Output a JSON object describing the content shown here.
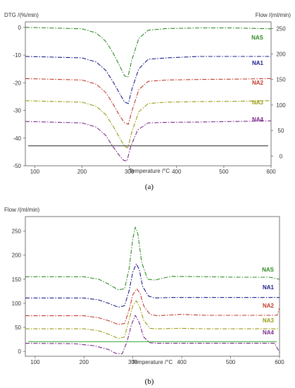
{
  "chart_data": [
    {
      "type": "line",
      "caption": "(a)",
      "xlabel": "Temperature /°C",
      "ylabel_left": "DTG /(%/min)",
      "ylabel_right": "Flow /(ml/min)",
      "xlim": [
        80,
        600
      ],
      "ylim_left": [
        -50,
        2
      ],
      "ylim_right": [
        -19,
        263
      ],
      "x_ticks": [
        "100",
        "200",
        "300",
        "400",
        "500",
        "600"
      ],
      "y_ticks_left": [
        "0",
        "-10",
        "-20",
        "-30",
        "-40",
        "-50"
      ],
      "y_ticks_right": [
        "250",
        "200",
        "150",
        "100",
        "50",
        "0"
      ],
      "reference_line_flow": 20,
      "series": [
        {
          "name": "NAS",
          "color": "#2e8b22",
          "style": "dashdot",
          "x": [
            80,
            200,
            230,
            250,
            265,
            280,
            290,
            297,
            305,
            320,
            340,
            380,
            450,
            520,
            600
          ],
          "y": [
            0,
            -0.5,
            -2,
            -5,
            -9,
            -14,
            -17.5,
            -18,
            -12,
            -4,
            -1,
            -0.4,
            -0.2,
            -0.2,
            -0.5
          ]
        },
        {
          "name": "NA1",
          "color": "#1c1c8c",
          "style": "dashdot",
          "x": [
            80,
            200,
            230,
            250,
            265,
            280,
            290,
            298,
            306,
            320,
            340,
            380,
            450,
            520,
            600
          ],
          "y": [
            -10.5,
            -11,
            -12.5,
            -15.5,
            -19.5,
            -24,
            -27,
            -27.5,
            -22,
            -15,
            -11.5,
            -11,
            -10.5,
            -10.5,
            -10.5
          ]
        },
        {
          "name": "NA2",
          "color": "#c0392b",
          "style": "dashdot",
          "x": [
            80,
            200,
            230,
            250,
            265,
            280,
            290,
            298,
            306,
            320,
            340,
            380,
            450,
            520,
            600
          ],
          "y": [
            -18.5,
            -19,
            -20.5,
            -23.5,
            -27.5,
            -32,
            -34.5,
            -35,
            -30,
            -22.5,
            -19.5,
            -19,
            -18.8,
            -18.7,
            -18.5
          ]
        },
        {
          "name": "NA3",
          "color": "#9a9a14",
          "style": "dashdot",
          "x": [
            80,
            200,
            230,
            250,
            265,
            280,
            290,
            297,
            305,
            320,
            340,
            380,
            450,
            520,
            600
          ],
          "y": [
            -26.5,
            -27,
            -28.5,
            -31.5,
            -35.5,
            -40,
            -43,
            -43.5,
            -38,
            -30.5,
            -27.5,
            -27,
            -26.8,
            -26.7,
            -26.5
          ]
        },
        {
          "name": "NA4",
          "color": "#7b2a8c",
          "style": "dashdot",
          "x": [
            80,
            200,
            230,
            250,
            265,
            280,
            288,
            295,
            303,
            318,
            340,
            380,
            450,
            520,
            600
          ],
          "y": [
            -34,
            -34.5,
            -36,
            -39,
            -43,
            -46.5,
            -48,
            -48.3,
            -43,
            -37,
            -34.5,
            -34.3,
            -34.2,
            -34,
            -33.8
          ]
        }
      ]
    },
    {
      "type": "line",
      "caption": "(b)",
      "xlabel": "Temperature /°C",
      "ylabel": "Flow /(ml/min)",
      "xlim": [
        80,
        600
      ],
      "ylim": [
        -10,
        280
      ],
      "x_ticks": [
        "100",
        "200",
        "300",
        "400",
        "500",
        "600"
      ],
      "y_ticks": [
        "250",
        "200",
        "150",
        "100",
        "50",
        "0"
      ],
      "reference_line_flow": 20,
      "series": [
        {
          "name": "NAS",
          "color": "#2e8b22",
          "style": "dashdot",
          "x": [
            80,
            200,
            230,
            250,
            270,
            283,
            292,
            300,
            305,
            310,
            318,
            330,
            345,
            360,
            380,
            450,
            520,
            580,
            600
          ],
          "y": [
            155,
            155,
            150,
            140,
            128,
            130,
            170,
            235,
            258,
            245,
            185,
            150,
            148,
            152,
            156,
            155,
            154,
            154,
            150
          ]
        },
        {
          "name": "NA1",
          "color": "#1c1c8c",
          "style": "dashdot",
          "x": [
            80,
            200,
            230,
            250,
            270,
            283,
            292,
            300,
            307,
            313,
            320,
            332,
            345,
            380,
            450,
            520,
            600
          ],
          "y": [
            111,
            111,
            107,
            100,
            92,
            95,
            125,
            165,
            182,
            170,
            135,
            115,
            111,
            112,
            112,
            112,
            112
          ]
        },
        {
          "name": "NA2",
          "color": "#c0392b",
          "style": "dashdot",
          "x": [
            80,
            200,
            230,
            250,
            270,
            283,
            292,
            300,
            308,
            315,
            322,
            335,
            350,
            400,
            450,
            520,
            595,
            600
          ],
          "y": [
            74,
            74,
            70,
            64,
            56,
            58,
            85,
            118,
            130,
            120,
            95,
            77,
            74,
            77,
            75,
            75,
            75,
            90
          ]
        },
        {
          "name": "NA3",
          "color": "#9a9a14",
          "style": "dashdot",
          "x": [
            80,
            200,
            230,
            250,
            270,
            283,
            292,
            300,
            307,
            314,
            322,
            335,
            350,
            400,
            450,
            520,
            600
          ],
          "y": [
            47,
            47,
            43,
            36,
            27,
            30,
            65,
            95,
            105,
            92,
            65,
            48,
            47,
            48,
            47,
            47,
            47
          ]
        },
        {
          "name": "NA4",
          "color": "#7b2a8c",
          "style": "dashdot",
          "x": [
            80,
            180,
            220,
            250,
            265,
            278,
            288,
            297,
            305,
            313,
            322,
            335,
            350,
            400,
            450,
            520,
            590,
            600
          ],
          "y": [
            17,
            16,
            12,
            4,
            -4,
            -5,
            20,
            55,
            75,
            60,
            30,
            18,
            17,
            17,
            17,
            17,
            17,
            -2
          ]
        }
      ]
    }
  ]
}
